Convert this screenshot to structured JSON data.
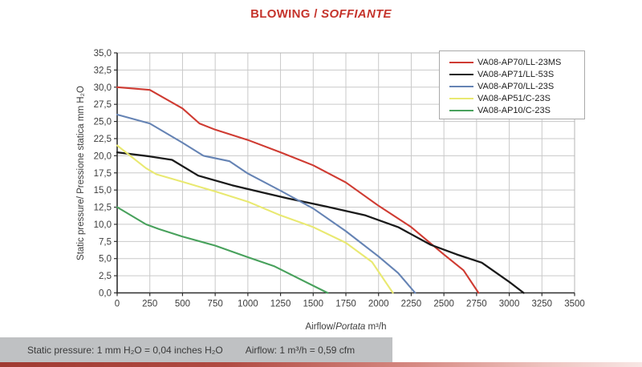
{
  "title": {
    "part1": "BLOWING / ",
    "part2": "SOFFIANTE"
  },
  "chart_data": {
    "type": "line",
    "xlabel": {
      "part1": "Airflow/",
      "part2": "Portata",
      "part3": " m³/h"
    },
    "ylabel": "Static pressure/ Pressione statica  mm  H₂O",
    "xlim": [
      0,
      3500
    ],
    "ylim": [
      0,
      35
    ],
    "grid": true,
    "legend_position": "top-right",
    "x_ticks": [
      0,
      250,
      500,
      750,
      1000,
      1250,
      1500,
      1750,
      2000,
      2250,
      2500,
      2750,
      3000,
      3250,
      3500
    ],
    "x_tick_labels": [
      "0",
      "250",
      "500",
      "750",
      "1000",
      "1250",
      "1500",
      "1750",
      "2000",
      "2250",
      "2500",
      "2750",
      "3000",
      "3250",
      "3500"
    ],
    "y_ticks": [
      0,
      2.5,
      5,
      7.5,
      10,
      12.5,
      15,
      17.5,
      20,
      22.5,
      25,
      27.5,
      30,
      32.5,
      35
    ],
    "y_tick_labels": [
      "0,0",
      "2,5",
      "5,0",
      "7,5",
      "10,0",
      "12,5",
      "15,0",
      "17,5",
      "20,0",
      "22,5",
      "25,0",
      "27,5",
      "30,0",
      "32,5",
      "35,0"
    ],
    "series": [
      {
        "name": "VA08-AP70/LL-23MS",
        "color": "#cf3b32",
        "points": [
          [
            0,
            30
          ],
          [
            250,
            29.6
          ],
          [
            500,
            26.9
          ],
          [
            630,
            24.7
          ],
          [
            750,
            23.8
          ],
          [
            1000,
            22.3
          ],
          [
            1250,
            20.5
          ],
          [
            1500,
            18.6
          ],
          [
            1750,
            16.1
          ],
          [
            2000,
            12.7
          ],
          [
            2250,
            9.6
          ],
          [
            2500,
            5.6
          ],
          [
            2650,
            3.3
          ],
          [
            2765,
            0
          ]
        ]
      },
      {
        "name": "VA08-AP71/LL-53S",
        "color": "#1a1a1a",
        "points": [
          [
            0,
            20.5
          ],
          [
            250,
            19.9
          ],
          [
            420,
            19.4
          ],
          [
            620,
            17.1
          ],
          [
            880,
            15.7
          ],
          [
            1100,
            14.7
          ],
          [
            1300,
            13.8
          ],
          [
            1600,
            12.6
          ],
          [
            1900,
            11.3
          ],
          [
            2150,
            9.6
          ],
          [
            2400,
            7.0
          ],
          [
            2600,
            5.6
          ],
          [
            2790,
            4.4
          ],
          [
            3000,
            1.6
          ],
          [
            3110,
            0
          ]
        ]
      },
      {
        "name": "VA08-AP70/LL-23S",
        "color": "#6583b4",
        "points": [
          [
            0,
            26
          ],
          [
            250,
            24.7
          ],
          [
            500,
            21.9
          ],
          [
            660,
            20.0
          ],
          [
            860,
            19.2
          ],
          [
            1000,
            17.4
          ],
          [
            1250,
            14.9
          ],
          [
            1500,
            12.3
          ],
          [
            1750,
            9.0
          ],
          [
            2000,
            5.3
          ],
          [
            2150,
            2.9
          ],
          [
            2280,
            0
          ]
        ]
      },
      {
        "name": "VA08-AP51/C-23S",
        "color": "#e9e971",
        "points": [
          [
            0,
            21.5
          ],
          [
            220,
            18.2
          ],
          [
            300,
            17.3
          ],
          [
            500,
            16.2
          ],
          [
            750,
            14.8
          ],
          [
            1000,
            13.3
          ],
          [
            1250,
            11.3
          ],
          [
            1500,
            9.6
          ],
          [
            1750,
            7.3
          ],
          [
            1950,
            4.5
          ],
          [
            2110,
            0
          ]
        ]
      },
      {
        "name": "VA08-AP10/C-23S",
        "color": "#48a15c",
        "points": [
          [
            0,
            12.5
          ],
          [
            220,
            10.0
          ],
          [
            320,
            9.3
          ],
          [
            500,
            8.2
          ],
          [
            750,
            6.9
          ],
          [
            1000,
            5.2
          ],
          [
            1200,
            3.9
          ],
          [
            1610,
            0
          ]
        ]
      }
    ]
  },
  "footer": {
    "pressure_note": "Static pressure: 1 mm H₂O = 0,04 inches H₂O",
    "airflow_note": "Airflow: 1 m³/h = 0,59 cfm"
  }
}
